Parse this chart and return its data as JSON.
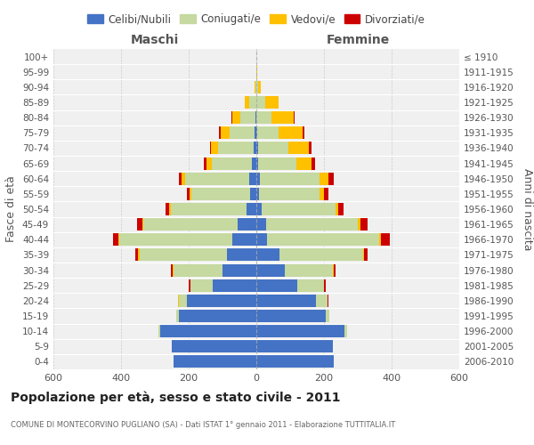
{
  "age_groups": [
    "0-4",
    "5-9",
    "10-14",
    "15-19",
    "20-24",
    "25-29",
    "30-34",
    "35-39",
    "40-44",
    "45-49",
    "50-54",
    "55-59",
    "60-64",
    "65-69",
    "70-74",
    "75-79",
    "80-84",
    "85-89",
    "90-94",
    "95-99",
    "100+"
  ],
  "birth_years": [
    "2006-2010",
    "2001-2005",
    "1996-2000",
    "1991-1995",
    "1986-1990",
    "1981-1985",
    "1976-1980",
    "1971-1975",
    "1966-1970",
    "1961-1965",
    "1956-1960",
    "1951-1955",
    "1946-1950",
    "1941-1945",
    "1936-1940",
    "1931-1935",
    "1926-1930",
    "1921-1925",
    "1916-1920",
    "1911-1915",
    "≤ 1910"
  ],
  "male": {
    "celibi": [
      245,
      250,
      285,
      230,
      205,
      130,
      100,
      88,
      72,
      55,
      28,
      18,
      22,
      14,
      8,
      5,
      2,
      0,
      0,
      0,
      0
    ],
    "coniugati": [
      0,
      0,
      5,
      8,
      25,
      65,
      145,
      258,
      332,
      278,
      225,
      175,
      188,
      118,
      105,
      75,
      45,
      20,
      3,
      1,
      0
    ],
    "vedovi": [
      0,
      0,
      0,
      0,
      1,
      1,
      2,
      3,
      5,
      5,
      5,
      5,
      10,
      15,
      20,
      25,
      25,
      15,
      2,
      0,
      0
    ],
    "divorziati": [
      0,
      0,
      0,
      0,
      1,
      3,
      5,
      10,
      15,
      15,
      10,
      8,
      10,
      8,
      5,
      5,
      1,
      0,
      0,
      0,
      0
    ]
  },
  "female": {
    "nubili": [
      230,
      225,
      260,
      205,
      175,
      120,
      85,
      68,
      32,
      28,
      15,
      8,
      10,
      6,
      4,
      2,
      1,
      0,
      0,
      0,
      0
    ],
    "coniugate": [
      0,
      0,
      8,
      12,
      35,
      80,
      140,
      248,
      332,
      272,
      218,
      178,
      178,
      112,
      92,
      65,
      45,
      25,
      5,
      1,
      0
    ],
    "vedove": [
      0,
      0,
      0,
      0,
      1,
      1,
      3,
      3,
      5,
      8,
      10,
      15,
      25,
      45,
      60,
      70,
      65,
      40,
      8,
      1,
      0
    ],
    "divorziate": [
      0,
      0,
      0,
      0,
      1,
      3,
      5,
      10,
      25,
      20,
      15,
      12,
      15,
      10,
      8,
      5,
      2,
      1,
      0,
      0,
      0
    ]
  },
  "colors": {
    "celibi": "#4472c4",
    "coniugati": "#c5d9a0",
    "vedovi": "#ffc000",
    "divorziati": "#cc0000"
  },
  "xlim": 600,
  "title": "Popolazione per età, sesso e stato civile - 2011",
  "subtitle": "COMUNE DI MONTECORVINO PUGLIANO (SA) - Dati ISTAT 1° gennaio 2011 - Elaborazione TUTTITALIA.IT",
  "ylabel_left": "Fasce di età",
  "ylabel_right": "Anni di nascita",
  "label_maschi": "Maschi",
  "label_femmine": "Femmine",
  "legend_labels": [
    "Celibi/Nubili",
    "Coniugati/e",
    "Vedovi/e",
    "Divorziati/e"
  ]
}
